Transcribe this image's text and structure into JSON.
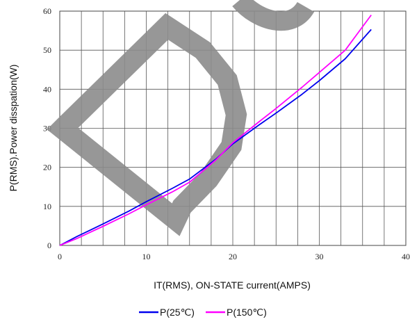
{
  "chart_data": {
    "type": "line",
    "xlabel": "IT(RMS), ON-STATE current(AMPS)",
    "ylabel": "P(RMS).Power disspation(W)",
    "xlim": [
      0,
      40
    ],
    "ylim": [
      0,
      60
    ],
    "x_ticks": [
      "0",
      "10",
      "20",
      "30",
      "40"
    ],
    "y_ticks": [
      "0",
      "10",
      "20",
      "30",
      "40",
      "50",
      "60"
    ],
    "grid": true,
    "legend_position": "bottom-center",
    "series": [
      {
        "name": "P(25℃)",
        "color": "#0000ee",
        "x": [
          0,
          2,
          5,
          8,
          10,
          13,
          15,
          18,
          20,
          23,
          25,
          28,
          30,
          33,
          36
        ],
        "y": [
          0,
          2.3,
          5.5,
          8.8,
          11.2,
          14.6,
          17.0,
          22.0,
          26.0,
          30.8,
          33.9,
          38.7,
          42.2,
          47.8,
          55.3
        ]
      },
      {
        "name": "P(150℃)",
        "color": "#ff00ff",
        "x": [
          0,
          2,
          5,
          8,
          10,
          13,
          15,
          18,
          20,
          23,
          25,
          28,
          30,
          33,
          36
        ],
        "y": [
          0,
          1.8,
          4.9,
          8.1,
          10.4,
          13.7,
          16.2,
          21.8,
          26.3,
          31.6,
          35.1,
          40.5,
          44.3,
          50.0,
          59.0
        ]
      }
    ]
  }
}
